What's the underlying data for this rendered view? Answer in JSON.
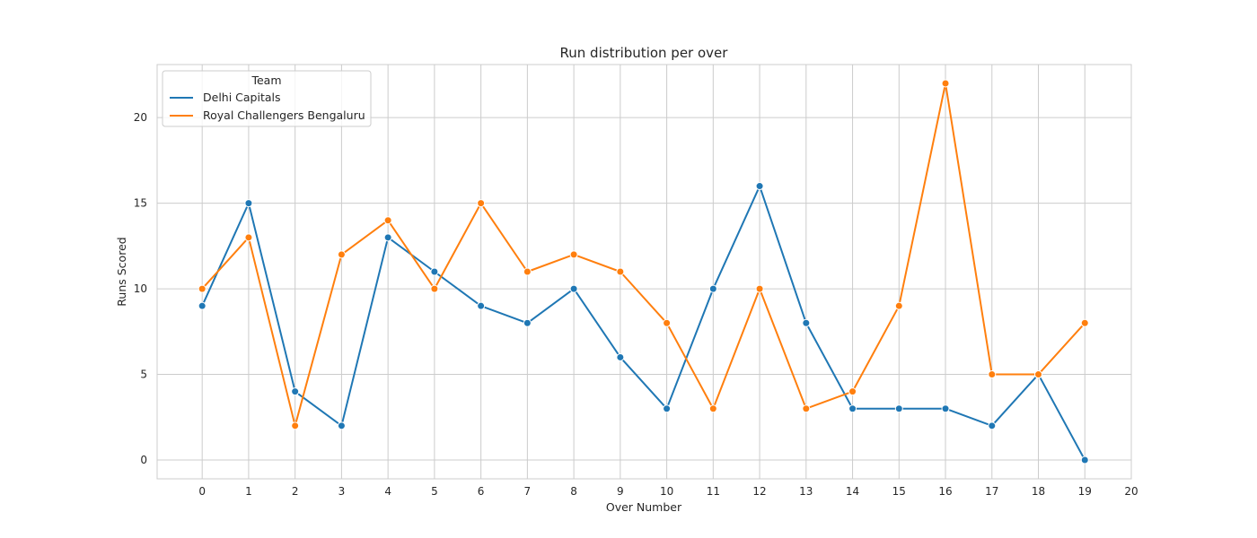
{
  "chart_data": {
    "type": "line",
    "title": "Run distribution per over",
    "xlabel": "Over Number",
    "ylabel": "Runs Scored",
    "x": [
      0,
      1,
      2,
      3,
      4,
      5,
      6,
      7,
      8,
      9,
      10,
      11,
      12,
      13,
      14,
      15,
      16,
      17,
      18,
      19
    ],
    "x_ticks": [
      0,
      1,
      2,
      3,
      4,
      5,
      6,
      7,
      8,
      9,
      10,
      11,
      12,
      13,
      14,
      15,
      16,
      17,
      18,
      19,
      20
    ],
    "y_ticks": [
      0,
      5,
      10,
      15,
      20
    ],
    "xlim": [
      -0.97,
      20
    ],
    "ylim": [
      -1.1,
      23.1
    ],
    "grid": true,
    "legend": {
      "title": "Team",
      "placement": "top-left"
    },
    "series": [
      {
        "name": "Delhi Capitals",
        "color": "#1f77b4",
        "values": [
          9,
          15,
          4,
          2,
          13,
          11,
          9,
          8,
          10,
          6,
          3,
          10,
          16,
          8,
          3,
          3,
          3,
          2,
          5,
          0
        ]
      },
      {
        "name": "Royal Challengers Bengaluru",
        "color": "#ff7f0e",
        "values": [
          10,
          13,
          2,
          12,
          14,
          10,
          15,
          11,
          12,
          11,
          8,
          3,
          10,
          3,
          4,
          9,
          22,
          5,
          5,
          8
        ]
      }
    ]
  }
}
